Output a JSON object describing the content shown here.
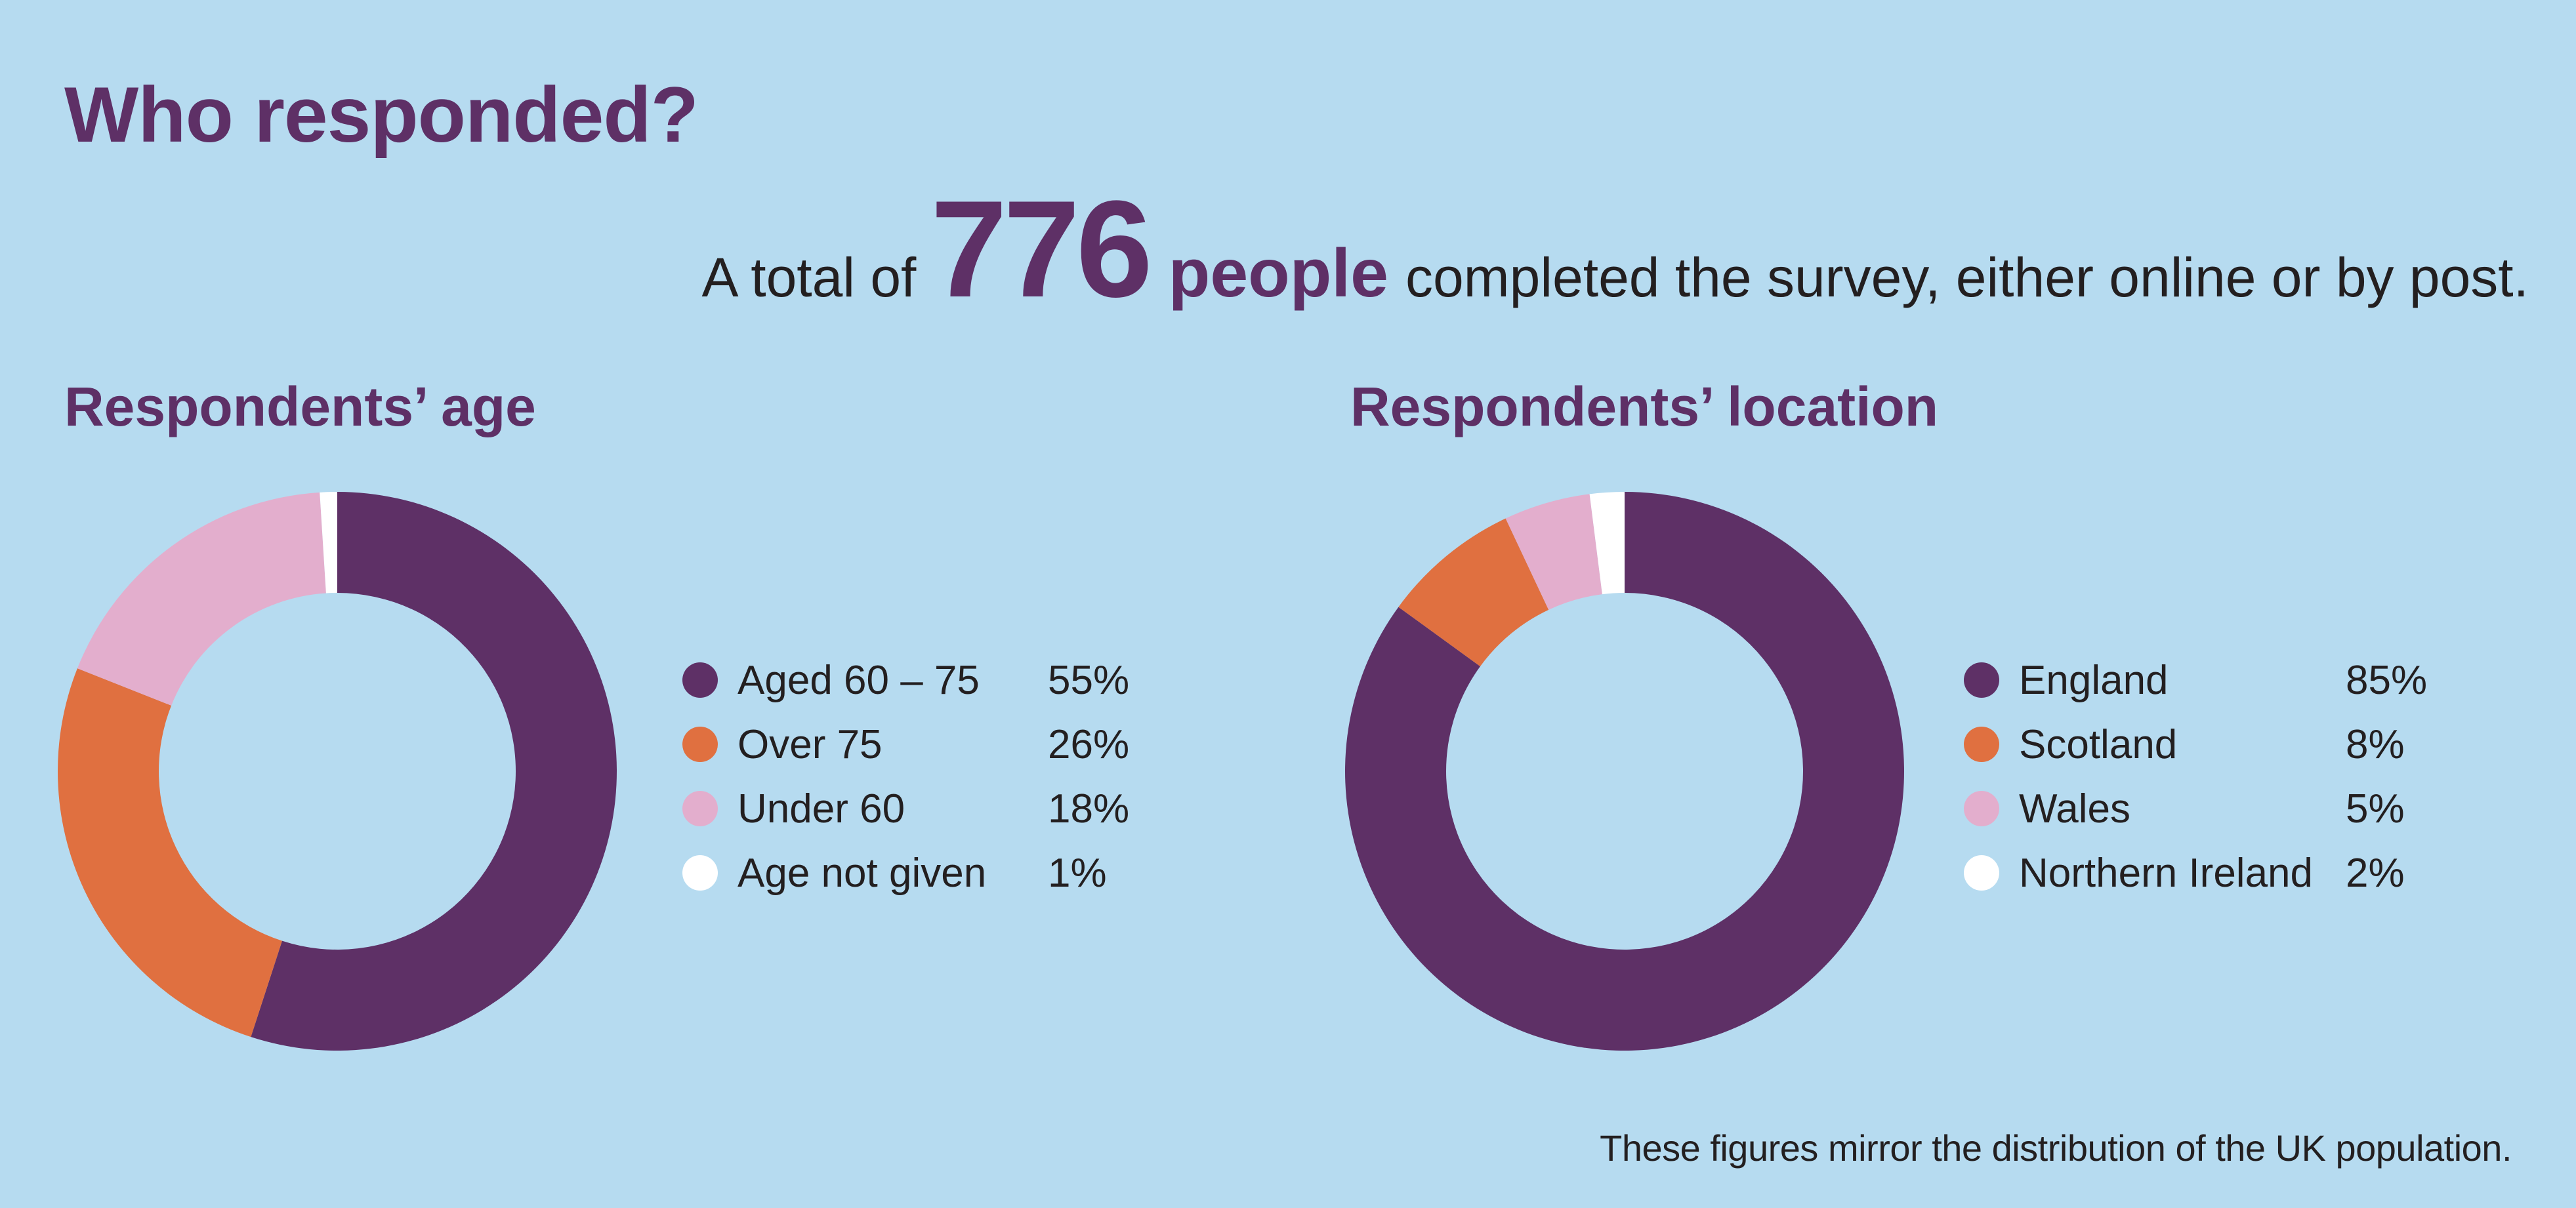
{
  "page": {
    "title": "Who responded?",
    "headline_prefix": "A total of",
    "headline_number": "776",
    "headline_unit": "people",
    "headline_suffix": "completed the survey, either online or by post.",
    "footnote": "These figures mirror the distribution of the UK population."
  },
  "colors": {
    "background": "#b6dbf0",
    "accent": "#5e3066"
  },
  "chart_data": [
    {
      "type": "pie",
      "style": "donut",
      "title": "Respondents’ age",
      "categories": [
        "Aged 60 – 75",
        "Over 75",
        "Under 60",
        "Age not given"
      ],
      "values": [
        55,
        26,
        18,
        1
      ],
      "value_labels": [
        "55%",
        "26%",
        "18%",
        "1%"
      ],
      "colors": [
        "#5e3066",
        "#e07040",
        "#e3aecd",
        "#ffffff"
      ],
      "legend_position": "right"
    },
    {
      "type": "pie",
      "style": "donut",
      "title": "Respondents’ location",
      "categories": [
        "England",
        "Scotland",
        "Wales",
        "Northern Ireland"
      ],
      "values": [
        85,
        8,
        5,
        2
      ],
      "value_labels": [
        "85%",
        "8%",
        "5%",
        "2%"
      ],
      "colors": [
        "#5e3066",
        "#e07040",
        "#e3aecd",
        "#ffffff"
      ],
      "legend_position": "right"
    }
  ]
}
